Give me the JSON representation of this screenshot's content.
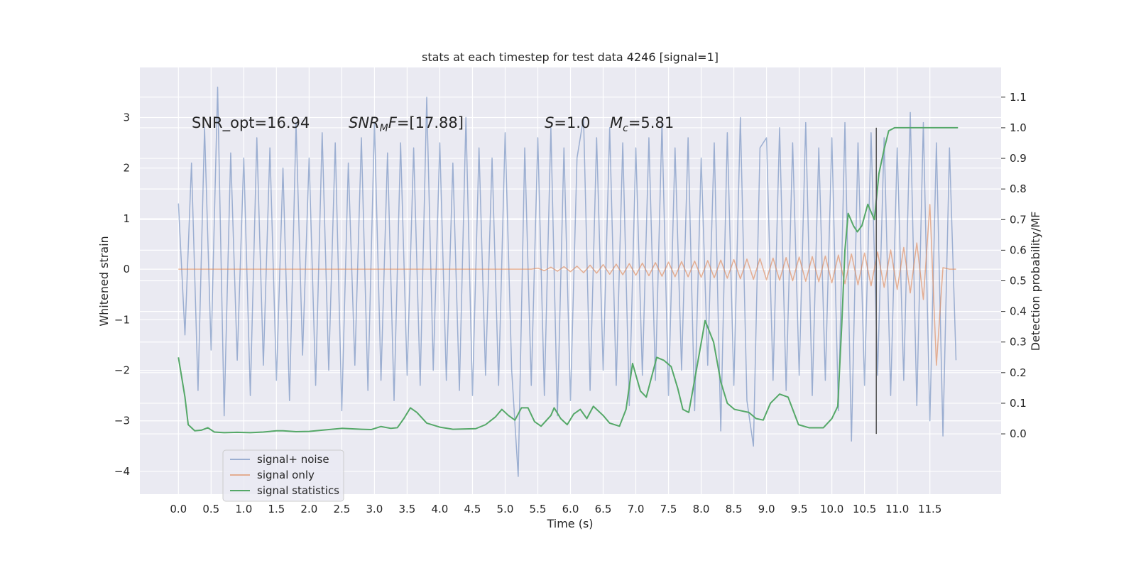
{
  "chart_data": {
    "type": "line",
    "title": "stats at each timestep for test data 4246 [signal=1]",
    "x_label": "Time (s)",
    "y_label": "Whitened strain",
    "y2_label": "Detection probability/MF",
    "xlim": [
      -0.59,
      12.59
    ],
    "ylim": [
      -4.45,
      3.99
    ],
    "y2lim": [
      -0.197,
      1.197
    ],
    "xticks": [
      {
        "value": 0,
        "label": "0.0"
      },
      0.5,
      {
        "value": 1,
        "label": "1.0"
      },
      1.5,
      {
        "value": 2,
        "label": "2.0"
      },
      2.5,
      {
        "value": 3,
        "label": "3.0"
      },
      3.5,
      {
        "value": 4,
        "label": "4.0"
      },
      4.5,
      {
        "value": 5,
        "label": "5.0"
      },
      5.5,
      {
        "value": 6,
        "label": "6.0"
      },
      6.5,
      {
        "value": 7,
        "label": "7.0"
      },
      7.5,
      {
        "value": 8,
        "label": "8.0"
      },
      8.5,
      {
        "value": 9,
        "label": "9.0"
      },
      9.5,
      {
        "value": 10,
        "label": "10.0"
      },
      10.5,
      {
        "value": 11,
        "label": "11.0"
      },
      11.5
    ],
    "yticks": [
      {
        "value": -4,
        "label": "−4"
      },
      {
        "value": -3,
        "label": "−3"
      },
      {
        "value": -2,
        "label": "−2"
      },
      {
        "value": -1,
        "label": "−1"
      },
      0,
      1,
      2,
      3
    ],
    "y2ticks": [
      {
        "value": 0,
        "label": "0.0"
      },
      0.1,
      0.2,
      0.3,
      0.4,
      0.5,
      0.6,
      0.7,
      0.8,
      0.9,
      {
        "value": 1,
        "label": "1.0"
      },
      1.1
    ],
    "grid": true,
    "background": "#eaeaf2",
    "legend": "lower left",
    "annotations": [
      {
        "parts": [
          {
            "text": "SNR_opt=16.94",
            "style": "normal"
          }
        ]
      },
      {
        "parts": [
          {
            "text": "SNR",
            "style": "italic"
          },
          {
            "text": "M",
            "style": "sub"
          },
          {
            "text": "F",
            "style": "italic"
          },
          {
            "text": "=[17.88]",
            "style": "normal"
          }
        ]
      },
      {
        "parts": [
          {
            "text": "S",
            "style": "italic"
          },
          {
            "text": "=1.0",
            "style": "normal"
          }
        ]
      },
      {
        "parts": [
          {
            "text": "M",
            "style": "italic"
          },
          {
            "text": "c",
            "style": "sub"
          },
          {
            "text": "=5.81",
            "style": "normal"
          }
        ]
      }
    ],
    "vline": {
      "x": 10.68,
      "ymin": 0,
      "ymax": 1,
      "color": "#555555"
    },
    "series": [
      {
        "name": "signal+ noise",
        "color": "#4c72b0",
        "opacity": 0.5,
        "x": [
          0,
          0.1,
          0.2,
          0.3,
          0.4,
          0.5,
          0.6,
          0.7,
          0.8,
          0.9,
          1,
          1.1,
          1.2,
          1.3,
          1.4,
          1.5,
          1.6,
          1.7,
          1.8,
          1.9,
          2,
          2.1,
          2.2,
          2.3,
          2.4,
          2.5,
          2.6,
          2.7,
          2.8,
          2.9,
          3,
          3.1,
          3.2,
          3.3,
          3.4,
          3.5,
          3.6,
          3.7,
          3.8,
          3.9,
          4,
          4.1,
          4.2,
          4.3,
          4.4,
          4.5,
          4.6,
          4.7,
          4.8,
          4.9,
          5,
          5.1,
          5.2,
          5.3,
          5.4,
          5.5,
          5.6,
          5.7,
          5.8,
          5.9,
          6,
          6.1,
          6.2,
          6.3,
          6.4,
          6.5,
          6.6,
          6.7,
          6.8,
          6.9,
          7,
          7.1,
          7.2,
          7.3,
          7.4,
          7.5,
          7.6,
          7.7,
          7.8,
          7.9,
          8,
          8.1,
          8.2,
          8.3,
          8.4,
          8.5,
          8.6,
          8.7,
          8.8,
          8.9,
          9,
          9.1,
          9.2,
          9.3,
          9.4,
          9.5,
          9.6,
          9.7,
          9.8,
          9.9,
          10,
          10.1,
          10.2,
          10.3,
          10.4,
          10.5,
          10.6,
          10.7,
          10.8,
          10.9,
          11,
          11.1,
          11.2,
          11.3,
          11.4,
          11.5,
          11.6,
          11.7,
          11.8,
          11.9
        ],
        "values": [
          1.3,
          -1.3,
          2.1,
          -2.4,
          2.8,
          -1.6,
          3.6,
          -2.9,
          2.3,
          -1.8,
          2.2,
          -2.5,
          2.6,
          -1.9,
          2.4,
          -2.2,
          2.0,
          -2.6,
          2.9,
          -1.7,
          2.2,
          -2.3,
          2.7,
          -2.0,
          2.5,
          -2.8,
          2.1,
          -1.9,
          2.6,
          -2.4,
          2.9,
          -2.2,
          2.3,
          -2.6,
          2.5,
          -2.1,
          2.4,
          -2.3,
          3.4,
          -2.0,
          2.5,
          -2.2,
          2.1,
          -2.4,
          3.0,
          -2.5,
          2.4,
          -2.1,
          2.2,
          -2.3,
          2.7,
          -2.0,
          -4.1,
          2.4,
          -2.3,
          2.6,
          -2.5,
          2.8,
          -2.9,
          2.4,
          -2.6,
          2.2,
          3.0,
          -2.4,
          2.6,
          -2.0,
          2.8,
          -2.3,
          2.5,
          -2.7,
          2.4,
          -2.1,
          2.6,
          -2.2,
          2.9,
          -2.5,
          2.4,
          -2.0,
          2.6,
          -2.8,
          2.2,
          -1.9,
          2.5,
          -3.2,
          2.7,
          -2.3,
          3.0,
          -2.6,
          -3.5,
          2.4,
          2.6,
          -2.2,
          2.8,
          -2.4,
          2.5,
          -2.1,
          2.9,
          -2.5,
          2.4,
          -2.2,
          2.6,
          -2.8,
          2.9,
          -3.4,
          2.5,
          -2.3,
          2.7,
          -2.1,
          2.6,
          -2.5,
          2.4,
          -2.2,
          3.1,
          -2.7,
          2.9,
          -3.0,
          2.5,
          -3.3,
          2.4,
          -1.8
        ]
      },
      {
        "name": "signal only",
        "color": "#dd8452",
        "opacity": 0.6,
        "x": [
          0,
          0.1,
          0.2,
          0.3,
          0.4,
          0.5,
          0.6,
          0.7,
          0.8,
          0.9,
          1,
          1.1,
          1.2,
          1.3,
          1.4,
          1.5,
          1.6,
          1.7,
          1.8,
          1.9,
          2,
          2.1,
          2.2,
          2.3,
          2.4,
          2.5,
          2.6,
          2.7,
          2.8,
          2.9,
          3,
          3.1,
          3.2,
          3.3,
          3.4,
          3.5,
          3.6,
          3.7,
          3.8,
          3.9,
          4,
          4.1,
          4.2,
          4.3,
          4.4,
          4.5,
          4.6,
          4.7,
          4.8,
          4.9,
          5,
          5.1,
          5.2,
          5.3,
          5.4,
          5.5,
          5.6,
          5.7,
          5.8,
          5.9,
          6,
          6.1,
          6.2,
          6.3,
          6.4,
          6.5,
          6.6,
          6.7,
          6.8,
          6.9,
          7,
          7.1,
          7.2,
          7.3,
          7.4,
          7.5,
          7.6,
          7.7,
          7.8,
          7.9,
          8,
          8.1,
          8.2,
          8.3,
          8.4,
          8.5,
          8.6,
          8.7,
          8.8,
          8.9,
          9,
          9.1,
          9.2,
          9.3,
          9.4,
          9.5,
          9.6,
          9.7,
          9.8,
          9.9,
          10,
          10.1,
          10.2,
          10.3,
          10.4,
          10.5,
          10.6,
          10.7,
          10.8,
          10.9,
          11,
          11.1,
          11.2,
          11.3,
          11.4,
          11.5,
          11.6,
          11.7,
          11.8,
          11.9
        ],
        "values": [
          0,
          0,
          0,
          0,
          0,
          0,
          0,
          0,
          0,
          0,
          0,
          0,
          0,
          0,
          0,
          0,
          0,
          0,
          0,
          0,
          0,
          0,
          0,
          0,
          0,
          0,
          0,
          0,
          0,
          0,
          0,
          0,
          0,
          0,
          0,
          0,
          0,
          0,
          0,
          0,
          0,
          0,
          0,
          0,
          0,
          0,
          0,
          0,
          0,
          0,
          0,
          0,
          0,
          0,
          0,
          0.02,
          -0.03,
          0.04,
          -0.04,
          0.05,
          -0.05,
          0.06,
          -0.07,
          0.08,
          -0.08,
          0.09,
          -0.1,
          0.1,
          -0.11,
          0.11,
          -0.12,
          0.12,
          -0.13,
          0.13,
          -0.14,
          0.14,
          -0.15,
          0.15,
          -0.15,
          0.16,
          -0.16,
          0.17,
          -0.17,
          0.18,
          -0.18,
          0.19,
          -0.19,
          0.2,
          -0.2,
          0.21,
          -0.21,
          0.22,
          -0.22,
          0.23,
          -0.23,
          0.24,
          -0.24,
          0.25,
          -0.25,
          0.26,
          -0.27,
          0.28,
          -0.29,
          0.3,
          -0.31,
          0.32,
          -0.33,
          0.34,
          -0.36,
          0.38,
          -0.4,
          0.43,
          -0.47,
          0.52,
          -0.6,
          1.28,
          -1.9,
          0.03,
          0,
          0
        ]
      },
      {
        "name": "signal statistics",
        "color": "#55a868",
        "opacity": 1,
        "axis": "y2",
        "x": [
          0,
          0.1,
          0.15,
          0.25,
          0.35,
          0.45,
          0.55,
          0.7,
          0.9,
          1.1,
          1.3,
          1.5,
          1.6,
          1.8,
          2,
          2.2,
          2.5,
          2.8,
          2.95,
          3.1,
          3.25,
          3.35,
          3.45,
          3.55,
          3.65,
          3.8,
          4,
          4.2,
          4.4,
          4.55,
          4.7,
          4.85,
          4.95,
          5.05,
          5.15,
          5.25,
          5.35,
          5.45,
          5.55,
          5.7,
          5.75,
          5.85,
          5.95,
          6.05,
          6.15,
          6.25,
          6.35,
          6.5,
          6.6,
          6.75,
          6.85,
          6.95,
          7.07,
          7.16,
          7.32,
          7.43,
          7.54,
          7.64,
          7.72,
          7.81,
          7.92,
          8.06,
          8.19,
          8.3,
          8.4,
          8.51,
          8.73,
          8.84,
          8.95,
          9.06,
          9.2,
          9.33,
          9.49,
          9.65,
          9.87,
          10,
          10.09,
          10.15,
          10.2,
          10.25,
          10.33,
          10.39,
          10.46,
          10.55,
          10.65,
          10.72,
          10.8,
          10.87,
          10.96,
          11.93
        ],
        "values": [
          0.25,
          0.12,
          0.03,
          0.01,
          0.012,
          0.02,
          0.006,
          0.004,
          0.005,
          0.004,
          0.006,
          0.01,
          0.01,
          0.007,
          0.008,
          0.012,
          0.018,
          0.015,
          0.014,
          0.024,
          0.018,
          0.02,
          0.05,
          0.085,
          0.07,
          0.035,
          0.022,
          0.015,
          0.016,
          0.017,
          0.03,
          0.055,
          0.08,
          0.06,
          0.045,
          0.085,
          0.085,
          0.04,
          0.025,
          0.06,
          0.085,
          0.05,
          0.03,
          0.065,
          0.08,
          0.05,
          0.09,
          0.06,
          0.035,
          0.025,
          0.08,
          0.23,
          0.14,
          0.12,
          0.25,
          0.24,
          0.22,
          0.15,
          0.08,
          0.07,
          0.2,
          0.37,
          0.3,
          0.17,
          0.1,
          0.08,
          0.07,
          0.05,
          0.045,
          0.1,
          0.13,
          0.12,
          0.03,
          0.02,
          0.02,
          0.05,
          0.09,
          0.35,
          0.6,
          0.72,
          0.68,
          0.66,
          0.68,
          0.75,
          0.7,
          0.85,
          0.93,
          0.99,
          1.0,
          1.0
        ]
      }
    ]
  }
}
